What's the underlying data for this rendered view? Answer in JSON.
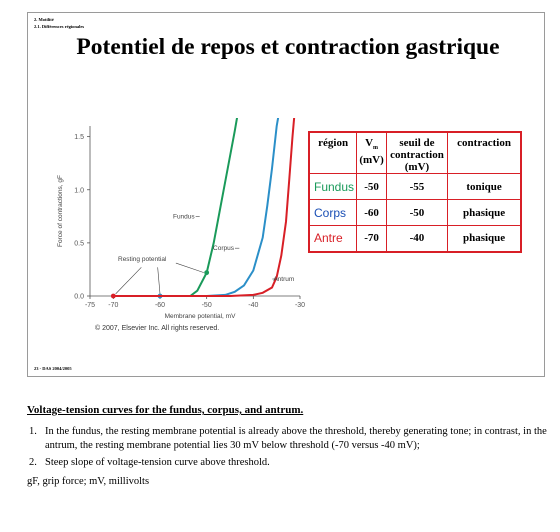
{
  "slide": {
    "breadcrumb_1": "2. Motilité",
    "breadcrumb_2": "2.1. Différences régionales",
    "title": "Potentiel de repos et contraction gastrique",
    "footer_tag": "23 - DAS 2004/2005"
  },
  "chart_data": {
    "type": "line",
    "xlabel": "Membrane potential, mV",
    "ylabel": "Force of contractions, gF",
    "xlim": [
      -75,
      -30
    ],
    "ylim": [
      0,
      1.6
    ],
    "x_ticks": [
      "-75",
      "-70",
      "-60",
      "-50",
      "-40",
      "-30"
    ],
    "y_ticks": [
      "0.0",
      "0.5",
      "1.0",
      "1.5"
    ],
    "copyright": "© 2007, Elsevier Inc. All rights reserved.",
    "annotation": "Resting potential",
    "series": [
      {
        "name": "Fundus",
        "color": "#1a9a5a",
        "resting_potential": -50,
        "points": [
          [
            -53.5,
            0
          ],
          [
            -52,
            0.05
          ],
          [
            -50,
            0.22
          ],
          [
            -48.5,
            0.5
          ],
          [
            -47,
            0.85
          ],
          [
            -45.5,
            1.2
          ],
          [
            -44,
            1.55
          ],
          [
            -43,
            1.8
          ]
        ]
      },
      {
        "name": "Corpus",
        "color": "#2b8fc8",
        "resting_potential": -60,
        "points": [
          [
            -60,
            0
          ],
          [
            -50,
            0
          ],
          [
            -46,
            0.01
          ],
          [
            -44,
            0.04
          ],
          [
            -42,
            0.1
          ],
          [
            -40,
            0.24
          ],
          [
            -38,
            0.55
          ],
          [
            -37,
            0.85
          ],
          [
            -36,
            1.2
          ],
          [
            -35,
            1.6
          ],
          [
            -34.2,
            1.8
          ]
        ]
      },
      {
        "name": "Antrum",
        "color": "#d81f26",
        "resting_potential": -70,
        "points": [
          [
            -70,
            0
          ],
          [
            -45,
            0
          ],
          [
            -40,
            0.01
          ],
          [
            -38,
            0.03
          ],
          [
            -36,
            0.08
          ],
          [
            -35,
            0.18
          ],
          [
            -34,
            0.38
          ],
          [
            -33,
            0.7
          ],
          [
            -32.3,
            1.1
          ],
          [
            -31.6,
            1.5
          ],
          [
            -31,
            1.8
          ]
        ]
      }
    ],
    "legend_placement": "labels on curves"
  },
  "table": {
    "headers": {
      "region": "région",
      "vm_main": "V",
      "vm_sub": "m",
      "vm_unit": "(mV)",
      "threshold": "seuil de contraction (mV)",
      "contraction": "contraction"
    },
    "rows": [
      {
        "region": "Fundus",
        "color": "#1a9a5a",
        "vm": "-50",
        "threshold": "-55",
        "contraction": "tonique"
      },
      {
        "region": "Corps",
        "color": "#1a4fb5",
        "vm": "-60",
        "threshold": "-50",
        "contraction": "phasique"
      },
      {
        "region": "Antre",
        "color": "#d81f26",
        "vm": "-70",
        "threshold": "-40",
        "contraction": "phasique"
      }
    ]
  },
  "caption": "Voltage-tension curves for the fundus, corpus, and antrum.",
  "notes": [
    {
      "num": "1.",
      "text": "In the fundus, the resting membrane potential is already above the threshold, thereby generating tone; in contrast, in the antrum, the resting membrane potential lies 30 mV below threshold (-70 versus -40 mV);"
    },
    {
      "num": "2.",
      "text": "Steep slope of voltage-tension curve above threshold."
    }
  ],
  "abbreviations": "gF, grip force; mV, millivolts"
}
